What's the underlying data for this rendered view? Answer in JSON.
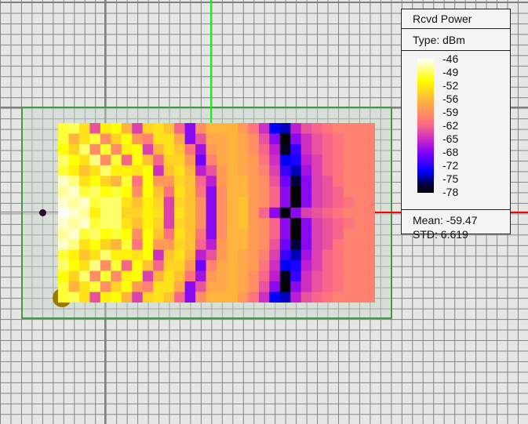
{
  "legend": {
    "title": "Rcvd Power",
    "type_label": "Type: dBm",
    "ticks": [
      "-46",
      "-49",
      "-52",
      "-56",
      "-59",
      "-62",
      "-65",
      "-68",
      "-72",
      "-75",
      "-78"
    ],
    "mean_label": "Mean: -59.47",
    "std_label": "STD: 6.619"
  },
  "colors": {
    "region_border": "#449944",
    "receiver_line": "#00ff00",
    "transmitter_line": "#ff0000"
  },
  "chart_data": {
    "type": "heatmap",
    "unit": "dBm",
    "zlim": [
      -78,
      -46
    ],
    "colormap": [
      "#000000",
      "#00003a",
      "#0000ff",
      "#7000ff",
      "#c020d0",
      "#ff7080",
      "#ffb040",
      "#ffff00",
      "#ffffff"
    ],
    "mean": -59.47,
    "std": 6.619,
    "rows_top_half": [
      [
        -50,
        -49.5,
        -53,
        -63,
        -52,
        -51,
        -56,
        -64,
        -54,
        -53,
        -55,
        -62,
        -68,
        -59,
        -56,
        -56,
        -56,
        -58,
        -61,
        -65,
        -73,
        -74,
        -66,
        -63,
        -62,
        -61,
        -60,
        -60,
        -60,
        -60
      ],
      [
        -50,
        -56,
        -53,
        -50,
        -59,
        -54,
        -51,
        -58,
        -60,
        -53,
        -53,
        -57,
        -68,
        -63,
        -57,
        -57,
        -56,
        -57,
        -59,
        -63,
        -68,
        -78,
        -68,
        -65,
        -63,
        -62,
        -61,
        -60,
        -60,
        -60
      ],
      [
        -51,
        -54,
        -49,
        -59,
        -50,
        -59,
        -52,
        -51,
        -64,
        -56,
        -53,
        -55,
        -61,
        -67,
        -58,
        -57,
        -56,
        -57,
        -59,
        -62,
        -66,
        -77,
        -71,
        -65,
        -63,
        -62,
        -61,
        -60,
        -60,
        -60
      ],
      [
        -49,
        -51,
        -53,
        -48.5,
        -59,
        -50,
        -62,
        -51,
        -55,
        -62,
        -54,
        -54,
        -58,
        -69,
        -60,
        -57,
        -56,
        -57,
        -58,
        -61,
        -65,
        -73,
        -72,
        -66,
        -64,
        -62,
        -61,
        -60,
        -60,
        -60
      ],
      [
        -50,
        -52,
        -55,
        -53,
        -49,
        -52,
        -52,
        -53,
        -51,
        -65,
        -55,
        -53,
        -56,
        -66,
        -63,
        -58,
        -56,
        -57,
        -58,
        -60,
        -64,
        -71,
        -74,
        -67,
        -64,
        -62,
        -61,
        -60,
        -60,
        -60
      ],
      [
        -47,
        -48.5,
        -53,
        -51,
        -54,
        -56,
        -50,
        -61,
        -51,
        -58,
        -58,
        -54,
        -55,
        -62,
        -66,
        -58,
        -56,
        -56,
        -58,
        -59,
        -63,
        -69,
        -76,
        -68,
        -64,
        -63,
        -61,
        -60,
        -60,
        -60
      ],
      [
        -48,
        -47,
        -50,
        -49,
        -51,
        -50,
        -51,
        -59,
        -51,
        -55,
        -61,
        -53,
        -55,
        -61,
        -68,
        -59,
        -56,
        -56,
        -58,
        -59,
        -62,
        -68,
        -78,
        -68,
        -64,
        -63,
        -62,
        -60,
        -60,
        -60
      ],
      [
        -47,
        -48,
        -47,
        -50,
        -49,
        -49,
        -53,
        -55,
        -52,
        -54,
        -64,
        -54,
        -55,
        -59,
        -68,
        -59,
        -56,
        -55,
        -58,
        -59,
        -62,
        -68,
        -78,
        -68,
        -64,
        -63,
        -62,
        -61,
        -60,
        -60
      ],
      [
        -46,
        -47,
        -48,
        -52,
        -49,
        -49,
        -54,
        -54,
        -52,
        -53,
        -64,
        -53,
        -55,
        -59,
        -68,
        -59,
        -56,
        -55,
        -58,
        -62,
        -68,
        -78,
        -68,
        -64,
        -63,
        -62,
        -61,
        -60,
        -60,
        -60
      ]
    ],
    "symmetry": "rows mirrored about center row"
  }
}
